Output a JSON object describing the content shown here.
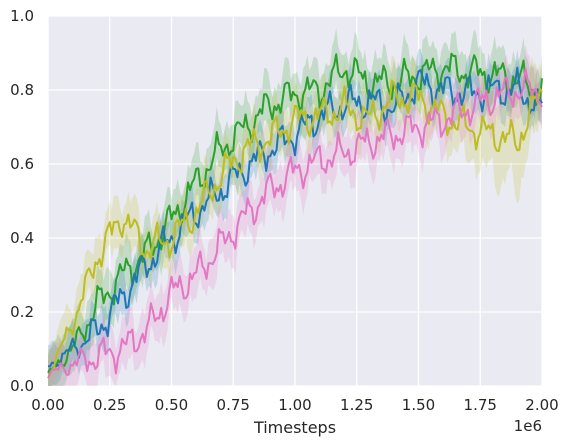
{
  "chart_data": {
    "type": "line",
    "xlabel": "Timesteps",
    "ylabel": "",
    "x_offset_label": "1e6",
    "xlim": [
      0,
      2000000
    ],
    "ylim": [
      0,
      1
    ],
    "grid": true,
    "x_tick_values": [
      0,
      250000,
      500000,
      750000,
      1000000,
      1250000,
      1500000,
      1750000,
      2000000
    ],
    "x_tick_labels": [
      "0.00",
      "0.25",
      "0.50",
      "0.75",
      "1.00",
      "1.25",
      "1.50",
      "1.75",
      "2.00"
    ],
    "y_tick_values": [
      0,
      0.2,
      0.4,
      0.6,
      0.8,
      1.0
    ],
    "y_tick_labels": [
      "0.0",
      "0.2",
      "0.4",
      "0.6",
      "0.8",
      "1.0"
    ],
    "x": [
      0,
      100000,
      200000,
      300000,
      400000,
      500000,
      600000,
      700000,
      800000,
      900000,
      1000000,
      1100000,
      1200000,
      1300000,
      1400000,
      1500000,
      1600000,
      1700000,
      1800000,
      1900000,
      2000000
    ],
    "series": [
      {
        "color": "#2ca02c",
        "values": [
          0.03,
          0.1,
          0.22,
          0.3,
          0.36,
          0.45,
          0.55,
          0.64,
          0.7,
          0.76,
          0.79,
          0.8,
          0.86,
          0.82,
          0.82,
          0.84,
          0.86,
          0.85,
          0.84,
          0.83,
          0.79
        ],
        "band": [
          0.06,
          0.06,
          0.06,
          0.06,
          0.06,
          0.06,
          0.06,
          0.06,
          0.06,
          0.06,
          0.06,
          0.06,
          0.06,
          0.06,
          0.06,
          0.06,
          0.06,
          0.06,
          0.06,
          0.06,
          0.06
        ]
      },
      {
        "color": "#1f77b4",
        "values": [
          0.05,
          0.1,
          0.15,
          0.24,
          0.33,
          0.4,
          0.47,
          0.53,
          0.59,
          0.64,
          0.68,
          0.73,
          0.76,
          0.77,
          0.75,
          0.82,
          0.8,
          0.79,
          0.8,
          0.8,
          0.75
        ],
        "band": [
          0.05,
          0.05,
          0.05,
          0.05,
          0.05,
          0.05,
          0.05,
          0.05,
          0.05,
          0.05,
          0.05,
          0.05,
          0.05,
          0.05,
          0.05,
          0.05,
          0.05,
          0.05,
          0.05,
          0.05,
          0.05
        ]
      },
      {
        "color": "#bcbd22",
        "values": [
          0.03,
          0.17,
          0.35,
          0.46,
          0.37,
          0.4,
          0.47,
          0.57,
          0.64,
          0.67,
          0.72,
          0.73,
          0.75,
          0.72,
          0.78,
          0.78,
          0.73,
          0.7,
          0.68,
          0.66,
          0.8
        ],
        "band": [
          0.06,
          0.06,
          0.06,
          0.06,
          0.06,
          0.06,
          0.06,
          0.06,
          0.06,
          0.06,
          0.06,
          0.06,
          0.06,
          0.06,
          0.06,
          0.06,
          0.06,
          0.08,
          0.1,
          0.12,
          0.06
        ]
      },
      {
        "color": "#e377c2",
        "values": [
          0.03,
          0.06,
          0.08,
          0.1,
          0.15,
          0.25,
          0.3,
          0.38,
          0.46,
          0.53,
          0.58,
          0.61,
          0.63,
          0.66,
          0.68,
          0.7,
          0.72,
          0.75,
          0.78,
          0.8,
          0.8
        ],
        "band": [
          0.06,
          0.06,
          0.06,
          0.06,
          0.06,
          0.06,
          0.06,
          0.06,
          0.06,
          0.06,
          0.06,
          0.06,
          0.06,
          0.06,
          0.06,
          0.06,
          0.06,
          0.06,
          0.06,
          0.06,
          0.06
        ]
      }
    ]
  }
}
